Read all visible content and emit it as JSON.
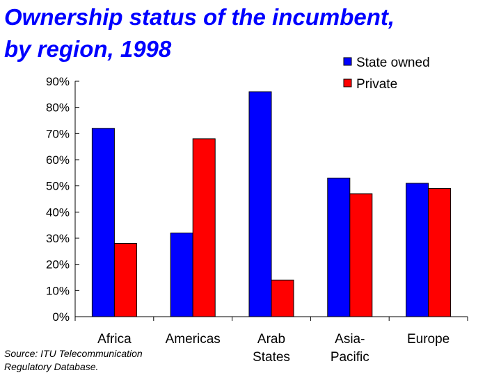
{
  "title_lines": [
    "Ownership status of the incumbent,",
    "by region, 1998"
  ],
  "source_lines": [
    "Source: ITU Telecommunication",
    "Regulatory Database."
  ],
  "chart_data": {
    "type": "bar",
    "title": "Ownership status of the incumbent, by region, 1998",
    "categories": [
      [
        "Africa"
      ],
      [
        "Americas"
      ],
      [
        "Arab",
        "States"
      ],
      [
        "Asia-",
        "Pacific"
      ],
      [
        "Europe"
      ]
    ],
    "series": [
      {
        "name": "State owned",
        "color": "#0000ff",
        "values": [
          72,
          32,
          86,
          53,
          51
        ]
      },
      {
        "name": "Private",
        "color": "#ff0000",
        "values": [
          28,
          68,
          14,
          47,
          49
        ]
      }
    ],
    "ylim": [
      0,
      90
    ],
    "yticks": [
      0,
      10,
      20,
      30,
      40,
      50,
      60,
      70,
      80,
      90
    ],
    "ytick_format": "%",
    "xlabel": "",
    "ylabel": "",
    "grid": false,
    "legend_position": "top-right"
  }
}
